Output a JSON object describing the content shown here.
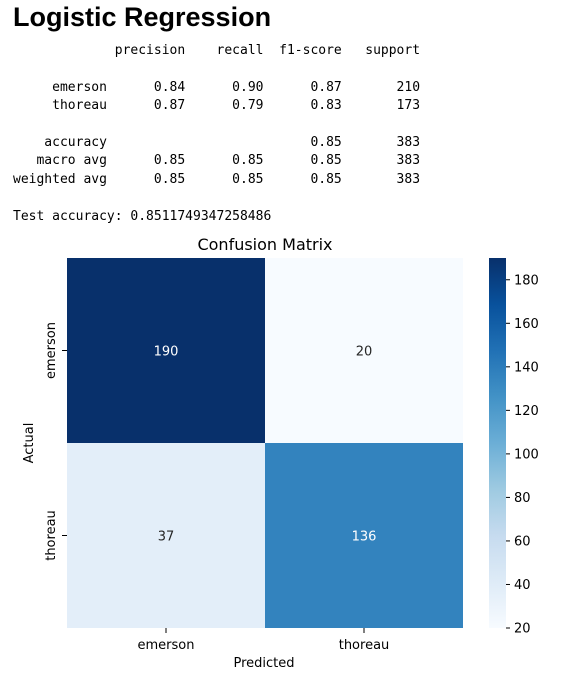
{
  "heading": "Logistic Regression",
  "report": {
    "headers": [
      "precision",
      "recall",
      "f1-score",
      "support"
    ],
    "rows": [
      {
        "label": "emerson",
        "precision": "0.84",
        "recall": "0.90",
        "f1": "0.87",
        "support": "210"
      },
      {
        "label": "thoreau",
        "precision": "0.87",
        "recall": "0.79",
        "f1": "0.83",
        "support": "173"
      },
      null,
      {
        "label": "accuracy",
        "precision": "",
        "recall": "",
        "f1": "0.85",
        "support": "383"
      },
      {
        "label": "macro avg",
        "precision": "0.85",
        "recall": "0.85",
        "f1": "0.85",
        "support": "383"
      },
      {
        "label": "weighted avg",
        "precision": "0.85",
        "recall": "0.85",
        "f1": "0.85",
        "support": "383"
      }
    ],
    "test_accuracy_line": "Test accuracy: 0.8511749347258486"
  },
  "chart_data": {
    "type": "heatmap",
    "title": "Confusion Matrix",
    "xlabel": "Predicted",
    "ylabel": "Actual",
    "x_categories": [
      "emerson",
      "thoreau"
    ],
    "y_categories": [
      "emerson",
      "thoreau"
    ],
    "values": [
      [
        190,
        20
      ],
      [
        37,
        136
      ]
    ],
    "colormap": "Blues",
    "colorbar": {
      "min": 20,
      "max": 190,
      "ticks": [
        20,
        40,
        60,
        80,
        100,
        120,
        140,
        160,
        180
      ]
    }
  }
}
